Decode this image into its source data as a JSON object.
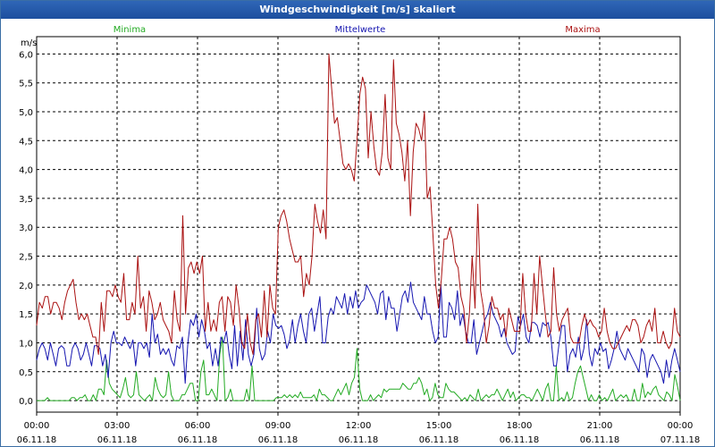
{
  "window": {
    "title": "Windgeschwindigkeit [m/s] skaliert"
  },
  "colors": {
    "minima": "#22aa22",
    "mittel": "#1515b0",
    "maxima": "#aa1111",
    "titlebar": "#2a5fae"
  },
  "chart_data": {
    "type": "line",
    "title": "Windgeschwindigkeit [m/s] skaliert",
    "ylabel": "m/s",
    "ylim": [
      -0.2,
      6.3
    ],
    "yticks": [
      "6,0",
      "5,5",
      "5,0",
      "4,5",
      "4,0",
      "3,5",
      "3,0",
      "2,5",
      "2,0",
      "1,5",
      "1,0",
      "0,5",
      "0,0"
    ],
    "yticks_values": [
      6.0,
      5.5,
      5.0,
      4.5,
      4.0,
      3.5,
      3.0,
      2.5,
      2.0,
      1.5,
      1.0,
      0.5,
      0.0
    ],
    "x_unit": "hours since 06.11.18 00:00",
    "xlim": [
      0,
      24
    ],
    "xticks": [
      {
        "time": "00:00",
        "date": "06.11.18"
      },
      {
        "time": "03:00",
        "date": "06.11.18"
      },
      {
        "time": "06:00",
        "date": "06.11.18"
      },
      {
        "time": "09:00",
        "date": "06.11.18"
      },
      {
        "time": "12:00",
        "date": "06.11.18"
      },
      {
        "time": "15:00",
        "date": "06.11.18"
      },
      {
        "time": "18:00",
        "date": "06.11.18"
      },
      {
        "time": "21:00",
        "date": "06.11.18"
      },
      {
        "time": "00:00",
        "date": "07.11.18"
      }
    ],
    "grid": true,
    "legend_placement": "top",
    "series": [
      {
        "name": "Minima",
        "color": "#22aa22",
        "x_step_hours": 0.167,
        "values": [
          0,
          0,
          0,
          0,
          0.05,
          0,
          0,
          0,
          0,
          0,
          0,
          0,
          0,
          0.05,
          0.05,
          0,
          0.05,
          0.05,
          0.1,
          0,
          0,
          0.1,
          0,
          0.2,
          0.2,
          0.1,
          0.7,
          0.3,
          0.2,
          0.15,
          0.1,
          0.05,
          0.2,
          0.4,
          0.1,
          0.05,
          0.1,
          0.5,
          0.1,
          0.05,
          0,
          0.05,
          0.1,
          0,
          0.4,
          0.2,
          0.1,
          0.05,
          0.1,
          0.5,
          0.1,
          0,
          0,
          0,
          0.1,
          0.1,
          0.2,
          0.3,
          0.3,
          0,
          0,
          0.5,
          0.7,
          0.1,
          0.1,
          0.2,
          0.1,
          0,
          0.8,
          1.1,
          0,
          0.05,
          0.2,
          0,
          0,
          0,
          0,
          0,
          0.2,
          0,
          0.6,
          0,
          0,
          0,
          0,
          0,
          0,
          0,
          0,
          0.05,
          0.05,
          0.05,
          0.1,
          0.05,
          0.1,
          0.05,
          0.1,
          0.05,
          0.15,
          0.05,
          0.05,
          0.05,
          0.05,
          0.1,
          0,
          0.2,
          0.1,
          0.1,
          0.05,
          0,
          0,
          0.1,
          0.2,
          0.1,
          0.2,
          0.3,
          0.1,
          0.3,
          0.4,
          0.9,
          0.2,
          0,
          0,
          0,
          0.1,
          0,
          0.05,
          0.1,
          0.05,
          0.2,
          0.15,
          0.2,
          0.2,
          0.2,
          0.2,
          0.2,
          0.3,
          0.25,
          0.2,
          0.2,
          0.3,
          0.3,
          0.4,
          0.3,
          0.1,
          0.2,
          0,
          0.05,
          0.3,
          0.1,
          0.05,
          0.05,
          0.3,
          0.2,
          0.15,
          0.15,
          0.1,
          0.05,
          0,
          0.05,
          0,
          0.1,
          0.05,
          0,
          0.2,
          0,
          0.05,
          0.1,
          0.05,
          0.1,
          0.1,
          0.2,
          0.1,
          0,
          0.1,
          0.2,
          0.05,
          0.15,
          0,
          0.05,
          0.1,
          0.1,
          0.05,
          0.05,
          0,
          0.1,
          0.2,
          0.1,
          0,
          0.2,
          0.3,
          0,
          0,
          0.6,
          0,
          0.05,
          0,
          0.15,
          0,
          0.05,
          0.3,
          0.5,
          0.6,
          0.4,
          0.2,
          0,
          0.1,
          0,
          0,
          0.1,
          0,
          0.05,
          0,
          0.1,
          0.2,
          0,
          0.05,
          0.1,
          0.05,
          0.1,
          0,
          0,
          0.2,
          0,
          0,
          0.3,
          0.05,
          0.15,
          0.1,
          0.2,
          0.25,
          0.1,
          0.05,
          0,
          0.15,
          0.1,
          0,
          0.45,
          0.25,
          0
        ]
      },
      {
        "name": "Mittelwerte",
        "color": "#1515b0",
        "x_step_hours": 0.167,
        "values": [
          0.7,
          0.9,
          1.0,
          0.9,
          0.7,
          1.0,
          0.8,
          0.6,
          0.9,
          0.95,
          0.9,
          0.6,
          0.6,
          0.9,
          1.0,
          0.9,
          0.7,
          0.8,
          1.0,
          0.8,
          0.6,
          0.95,
          0.95,
          0.9,
          0.6,
          0.8,
          0.4,
          1.0,
          1.2,
          1.0,
          1.0,
          0.95,
          1.1,
          1.0,
          0.9,
          1.05,
          0.6,
          1.0,
          1.0,
          0.9,
          1.0,
          0.75,
          1.5,
          1.0,
          1.15,
          0.8,
          0.9,
          0.8,
          0.9,
          0.7,
          0.6,
          0.95,
          0.9,
          1.1,
          0.3,
          1.0,
          1.4,
          1.3,
          1.5,
          1.1,
          1.4,
          1.2,
          0.9,
          1.0,
          0.6,
          0.9,
          0.6,
          1.1,
          1.0,
          1.2,
          0.8,
          0.55,
          1.3,
          0.6,
          1.2,
          0.7,
          1.4,
          0.8,
          0.6,
          0.8,
          1.6,
          0.9,
          0.7,
          0.8,
          1.2,
          1.0,
          1.5,
          1.3,
          1.25,
          1.3,
          1.15,
          0.9,
          1.05,
          1.4,
          1.0,
          1.3,
          1.5,
          1.2,
          1.0,
          1.5,
          1.6,
          1.2,
          1.5,
          1.8,
          1.0,
          1.0,
          1.45,
          1.6,
          1.5,
          1.8,
          1.7,
          1.6,
          1.85,
          1.5,
          1.8,
          1.6,
          1.9,
          1.6,
          1.7,
          1.75,
          2.0,
          1.9,
          1.8,
          1.7,
          1.5,
          1.85,
          1.9,
          1.4,
          1.8,
          1.6,
          1.6,
          1.2,
          1.5,
          1.8,
          1.9,
          1.7,
          2.05,
          1.7,
          1.6,
          1.5,
          1.4,
          1.8,
          1.5,
          1.5,
          1.2,
          1.0,
          1.1,
          2.0,
          1.1,
          1.1,
          1.7,
          1.6,
          1.4,
          1.9,
          1.3,
          1.5,
          1.2,
          1.0,
          1.0,
          1.4,
          0.8,
          1.0,
          1.2,
          1.4,
          1.5,
          1.7,
          1.5,
          1.4,
          1.3,
          1.1,
          1.25,
          1.0,
          0.9,
          0.8,
          0.85,
          1.45,
          1.3,
          1.5,
          1.1,
          1.0,
          1.35,
          1.35,
          1.3,
          1.1,
          1.35,
          1.3,
          1.35,
          1.1,
          0.6,
          0.6,
          1.0,
          1.3,
          1.3,
          0.5,
          0.8,
          0.9,
          0.75,
          1.1,
          0.7,
          0.9,
          1.4,
          0.8,
          0.6,
          0.9,
          0.8,
          1.0,
          0.85,
          0.9,
          0.55,
          0.7,
          0.9,
          1.2,
          0.9,
          0.8,
          0.7,
          0.9,
          0.8,
          0.7,
          0.6,
          0.5,
          0.9,
          0.8,
          0.4,
          0.7,
          0.8,
          0.7,
          0.6,
          0.5,
          0.3,
          0.7,
          0.4,
          0.7,
          0.9,
          0.7,
          0.5
        ]
      },
      {
        "name": "Maxima",
        "color": "#aa1111",
        "x_step_hours": 0.167,
        "values": [
          1.3,
          1.7,
          1.6,
          1.8,
          1.8,
          1.5,
          1.7,
          1.7,
          1.6,
          1.4,
          1.7,
          1.9,
          2.0,
          2.1,
          1.7,
          1.4,
          1.5,
          1.4,
          1.5,
          1.3,
          1.1,
          1.1,
          0.8,
          1.7,
          1.2,
          1.9,
          1.9,
          1.8,
          2.0,
          1.8,
          1.7,
          2.2,
          1.4,
          1.4,
          1.7,
          1.5,
          2.5,
          1.6,
          1.8,
          1.2,
          1.9,
          1.7,
          1.4,
          1.5,
          1.7,
          1.4,
          1.3,
          1.2,
          1.0,
          1.9,
          1.4,
          1.2,
          3.2,
          1.5,
          2.3,
          2.4,
          2.2,
          2.4,
          2.2,
          2.5,
          1.2,
          1.7,
          1.2,
          1.4,
          1.2,
          1.7,
          1.8,
          1.2,
          1.8,
          1.7,
          1.3,
          2.0,
          1.6,
          1.0,
          0.9,
          1.5,
          1.0,
          0.8,
          1.4,
          1.5,
          1.1,
          1.9,
          1.1,
          2.0,
          1.6,
          1.5,
          3.0,
          3.2,
          3.3,
          3.1,
          2.8,
          2.6,
          2.4,
          2.4,
          2.5,
          1.8,
          2.2,
          2.0,
          2.5,
          3.4,
          3.1,
          2.9,
          3.3,
          2.8,
          6.0,
          5.4,
          4.8,
          4.9,
          4.5,
          4.1,
          4.0,
          4.1,
          4.0,
          3.8,
          4.5,
          5.3,
          5.6,
          5.4,
          4.2,
          5.0,
          4.4,
          4.0,
          3.9,
          4.3,
          5.3,
          4.2,
          4.0,
          5.9,
          4.8,
          4.6,
          4.3,
          3.8,
          4.5,
          3.2,
          4.3,
          4.8,
          4.7,
          4.5,
          5.0,
          3.5,
          3.7,
          2.9,
          2.0,
          1.6,
          2.1,
          2.8,
          2.8,
          3.0,
          2.8,
          2.4,
          2.3,
          1.8,
          1.6,
          1.0,
          1.5,
          2.5,
          1.6,
          3.4,
          1.9,
          1.6,
          1.0,
          1.3,
          1.8,
          1.6,
          1.6,
          1.4,
          1.5,
          1.1,
          1.6,
          1.4,
          1.2,
          1.2,
          1.2,
          2.2,
          1.5,
          1.2,
          1.2,
          2.2,
          1.5,
          2.5,
          2.0,
          1.5,
          1.1,
          1.2,
          2.3,
          1.5,
          1.2,
          1.4,
          1.5,
          1.6,
          1.1,
          1.0,
          1.0,
          1.0,
          1.3,
          1.5,
          1.3,
          1.4,
          1.3,
          1.25,
          1.1,
          1.2,
          1.6,
          1.2,
          1.0,
          0.9,
          0.9,
          1.0,
          1.1,
          1.2,
          1.3,
          1.2,
          1.4,
          1.4,
          1.3,
          1.0,
          1.1,
          1.3,
          1.4,
          1.2,
          1.6,
          1.0,
          1.0,
          1.2,
          1.0,
          0.9,
          1.0,
          1.6,
          1.2,
          1.1
        ]
      }
    ]
  }
}
